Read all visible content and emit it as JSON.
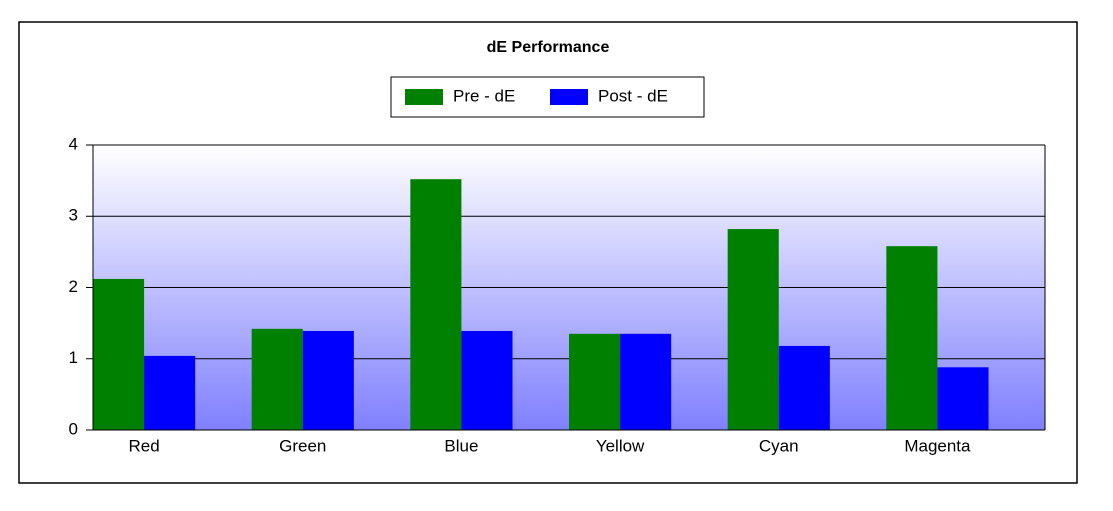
{
  "chart_data": {
    "type": "bar",
    "title": "dE Performance",
    "categories": [
      "Red",
      "Green",
      "Blue",
      "Yellow",
      "Cyan",
      "Magenta"
    ],
    "series": [
      {
        "name": "Pre - dE",
        "color": "#008000",
        "values": [
          2.12,
          1.42,
          3.52,
          1.35,
          2.82,
          2.58
        ]
      },
      {
        "name": "Post - dE",
        "color": "#0000ff",
        "values": [
          1.04,
          1.39,
          1.39,
          1.35,
          1.18,
          0.88
        ]
      }
    ],
    "ylim": [
      0,
      4
    ],
    "yticks": [
      0,
      1,
      2,
      3,
      4
    ],
    "grid": true
  }
}
